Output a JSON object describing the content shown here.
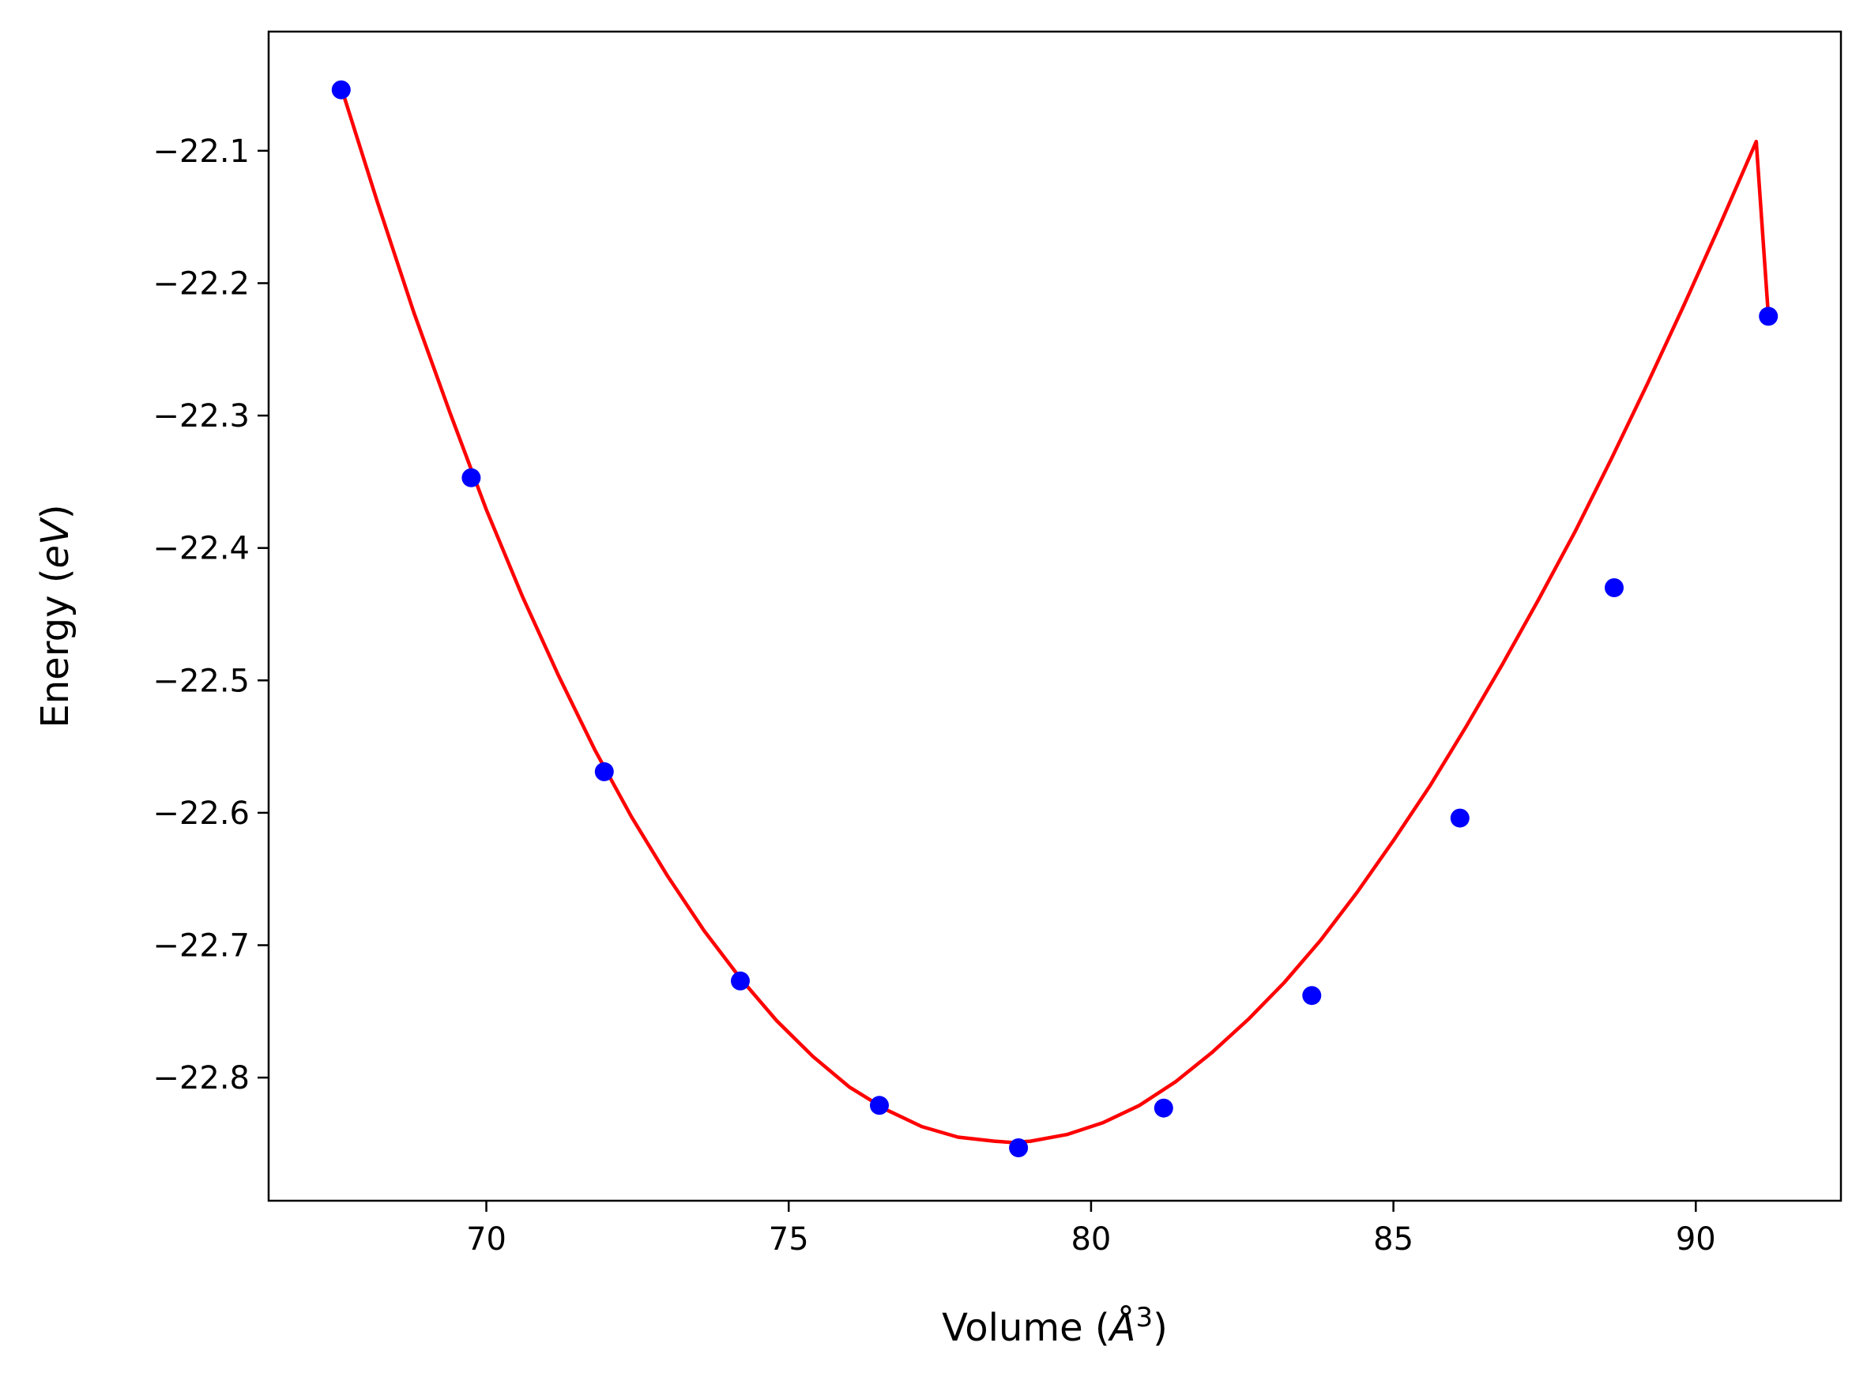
{
  "chart_data": {
    "type": "scatter",
    "title": "",
    "xlabel": "Volume (",
    "xlabel_unit": "Å",
    "xlabel_sup": "3",
    "xlabel_close": ")",
    "ylabel": "Energy (",
    "ylabel_unit": "eV",
    "ylabel_close": ")",
    "xlim": [
      66.4,
      92.4
    ],
    "ylim": [
      -22.893,
      -22.01
    ],
    "xticks": [
      70,
      75,
      80,
      85,
      90
    ],
    "xtick_labels": [
      "70",
      "75",
      "80",
      "85",
      "90"
    ],
    "yticks": [
      -22.1,
      -22.2,
      -22.3,
      -22.4,
      -22.5,
      -22.6,
      -22.7,
      -22.8
    ],
    "ytick_labels": [
      "−22.1",
      "−22.2",
      "−22.3",
      "−22.4",
      "−22.5",
      "−22.6",
      "−22.7",
      "−22.8"
    ],
    "grid": false,
    "legend": null,
    "series": [
      {
        "kind": "points",
        "color": "#0000ff",
        "x": [
          67.6,
          69.75,
          71.95,
          74.2,
          76.5,
          78.8,
          81.2,
          83.65,
          86.1,
          88.65,
          91.2
        ],
        "y": [
          -22.054,
          -22.347,
          -22.569,
          -22.727,
          -22.821,
          -22.853,
          -22.823,
          -22.738,
          -22.604,
          -22.43,
          -22.225
        ]
      },
      {
        "kind": "fit-line",
        "color": "#ff0000",
        "x": [
          67.6,
          68.2,
          68.8,
          69.4,
          70.0,
          70.6,
          71.2,
          71.8,
          72.4,
          73.0,
          73.6,
          74.2,
          74.8,
          75.4,
          76.0,
          76.6,
          77.2,
          77.8,
          78.4,
          78.7,
          79.0,
          79.6,
          80.2,
          80.8,
          81.4,
          82.0,
          82.6,
          83.2,
          83.8,
          84.4,
          85.0,
          85.6,
          86.2,
          86.8,
          87.4,
          88.0,
          88.6,
          89.2,
          89.8,
          90.4,
          91.0,
          91.2
        ],
        "y": [
          -22.052,
          -22.139,
          -22.222,
          -22.298,
          -22.371,
          -22.437,
          -22.497,
          -22.553,
          -22.603,
          -22.648,
          -22.689,
          -22.725,
          -22.757,
          -22.784,
          -22.807,
          -22.824,
          -22.837,
          -22.845,
          -22.848,
          -22.849,
          -22.848,
          -22.843,
          -22.834,
          -22.821,
          -22.803,
          -22.781,
          -22.756,
          -22.728,
          -22.696,
          -22.66,
          -22.621,
          -22.58,
          -22.535,
          -22.488,
          -22.439,
          -22.388,
          -22.333,
          -22.276,
          -22.217,
          -22.156,
          -22.093,
          -22.225
        ]
      }
    ]
  }
}
